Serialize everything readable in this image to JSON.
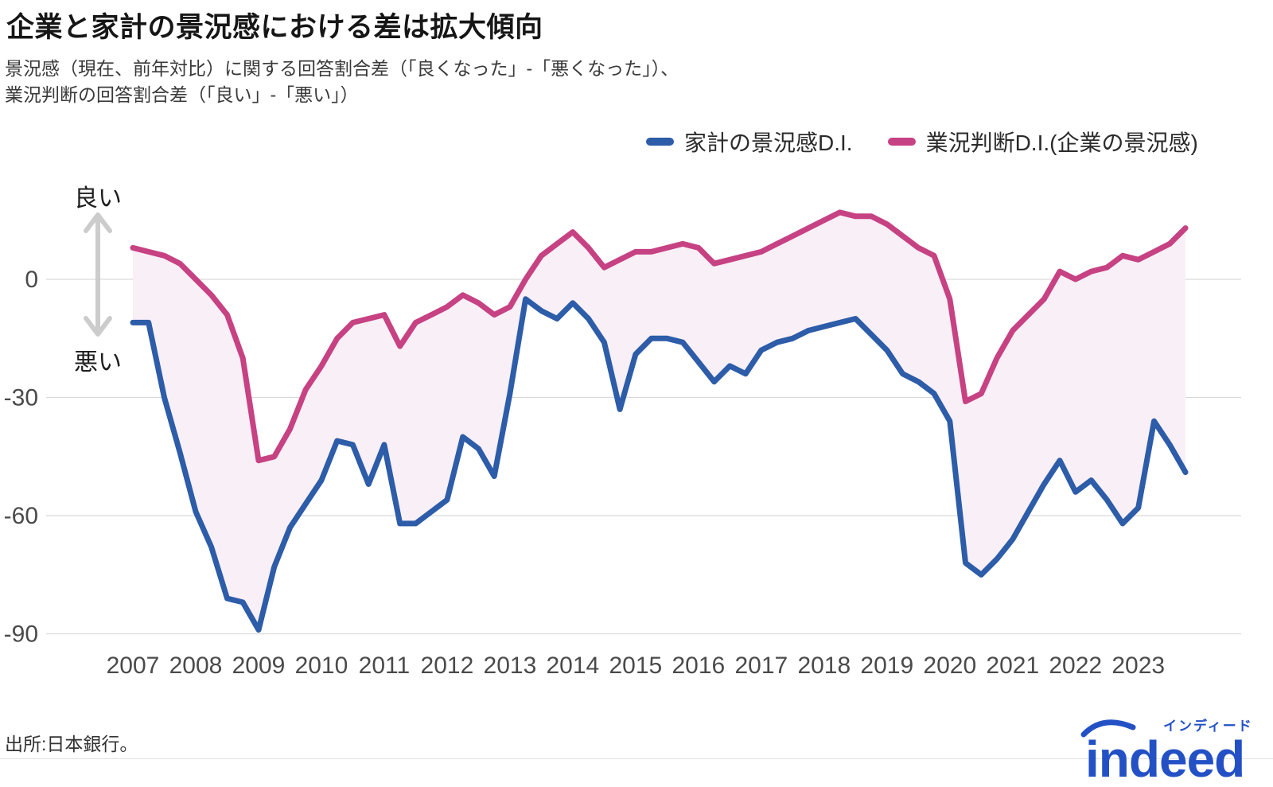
{
  "header": {
    "title": "企業と家計の景況感における差は拡大傾向",
    "subtitle_line1": "景況感（現在、前年対比）に関する回答割合差（「良くなった」-「悪くなった」）、",
    "subtitle_line2": "業況判断の回答割合差（「良い」-「悪い」）"
  },
  "legend": {
    "items": [
      {
        "label": "家計の景況感D.I.",
        "color": "#2d5ca8"
      },
      {
        "label": "業況判断D.I.(企業の景況感)",
        "color": "#c64283"
      }
    ]
  },
  "axis": {
    "good_label": "良い",
    "bad_label": "悪い",
    "arrow_color": "#cccccc"
  },
  "chart_data": {
    "type": "line",
    "x_unit": "quarterly",
    "x_start_year": 2007,
    "x_tick_years": [
      2007,
      2008,
      2009,
      2010,
      2011,
      2012,
      2013,
      2014,
      2015,
      2016,
      2017,
      2018,
      2019,
      2020,
      2021,
      2022,
      2023
    ],
    "y_ticks": [
      0,
      -30,
      -60,
      -90
    ],
    "ylim": [
      -95,
      20
    ],
    "grid": "horizontal",
    "legend_position": "top-right",
    "fill_between_color": "#f9eff6",
    "gridline_color": "#d9d9d9",
    "tick_text_color": "#4a4a4a",
    "series": [
      {
        "name": "家計の景況感D.I.",
        "color": "#2d5ca8",
        "values": [
          -11,
          -11,
          -30,
          -44,
          -59,
          -68,
          -81,
          -82,
          -89,
          -73,
          -63,
          -57,
          -51,
          -41,
          -42,
          -52,
          -42,
          -62,
          -62,
          -59,
          -56,
          -40,
          -43,
          -50,
          -29,
          -5,
          -8,
          -10,
          -6,
          -10,
          -16,
          -33,
          -19,
          -15,
          -15,
          -16,
          -21,
          -26,
          -22,
          -24,
          -18,
          -16,
          -15,
          -13,
          -12,
          -11,
          -10,
          -14,
          -18,
          -24,
          -26,
          -29,
          -36,
          -72,
          -75,
          -71,
          -66,
          -59,
          -52,
          -46,
          -54,
          -51,
          -56,
          -62,
          -58,
          -36,
          -42,
          -49
        ]
      },
      {
        "name": "業況判断D.I.(企業の景況感)",
        "color": "#c64283",
        "values": [
          8,
          7,
          6,
          4,
          0,
          -4,
          -9,
          -20,
          -46,
          -45,
          -38,
          -28,
          -22,
          -15,
          -11,
          -10,
          -9,
          -17,
          -11,
          -9,
          -7,
          -4,
          -6,
          -9,
          -7,
          0,
          6,
          9,
          12,
          8,
          3,
          5,
          7,
          7,
          8,
          9,
          8,
          4,
          5,
          6,
          7,
          9,
          11,
          13,
          15,
          17,
          16,
          16,
          14,
          11,
          8,
          6,
          -5,
          -31,
          -29,
          -20,
          -13,
          -9,
          -5,
          2,
          0,
          2,
          3,
          6,
          5,
          7,
          9,
          13
        ]
      }
    ]
  },
  "footer": {
    "source": "出所:日本銀行。",
    "logo": {
      "wordmark": "indeed",
      "katakana": "インディード",
      "color": "#2351c5"
    }
  }
}
